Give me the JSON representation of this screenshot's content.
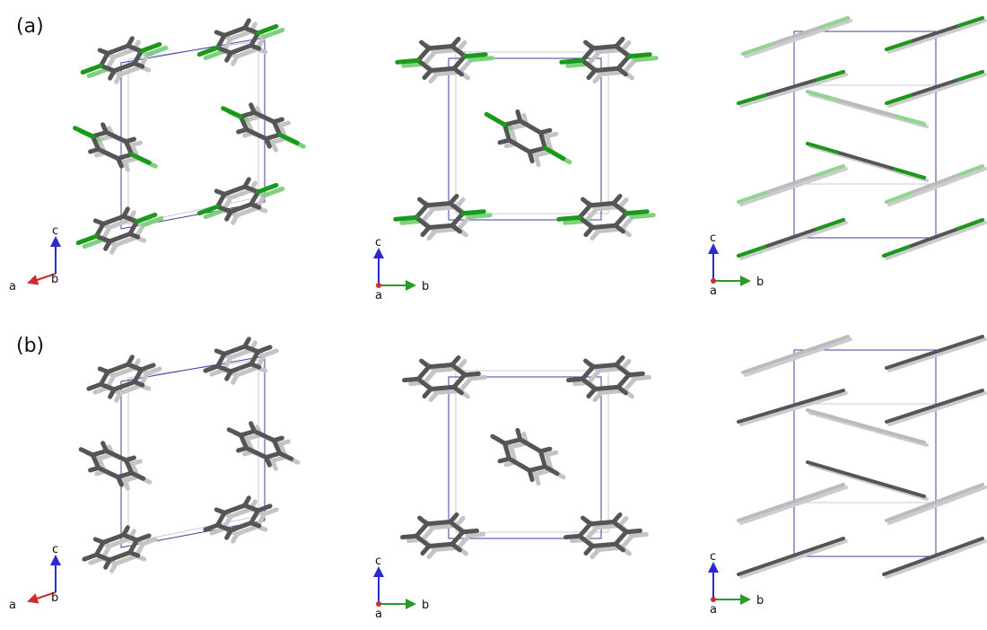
{
  "rows": [
    {
      "label": "(a)",
      "panels": [
        {
          "vertical": "c",
          "horizontal": "a",
          "depth": "b"
        },
        {
          "vertical": "c",
          "horizontal": "b",
          "depth": "a"
        },
        {
          "vertical": "c",
          "horizontal": "b",
          "depth": "a"
        }
      ]
    },
    {
      "label": "(b)",
      "panels": [
        {
          "vertical": "c",
          "horizontal": "a",
          "depth": "b"
        },
        {
          "vertical": "c",
          "horizontal": "b",
          "depth": "a"
        },
        {
          "vertical": "c",
          "horizontal": "b",
          "depth": "a"
        }
      ]
    }
  ]
}
